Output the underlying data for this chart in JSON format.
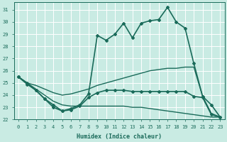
{
  "xlabel": "Humidex (Indice chaleur)",
  "xlim": [
    -0.5,
    23.5
  ],
  "ylim": [
    22,
    31.6
  ],
  "yticks": [
    22,
    23,
    24,
    25,
    26,
    27,
    28,
    29,
    30,
    31
  ],
  "xticks": [
    0,
    1,
    2,
    3,
    4,
    5,
    6,
    7,
    8,
    9,
    10,
    11,
    12,
    13,
    14,
    15,
    16,
    17,
    18,
    19,
    20,
    21,
    22,
    23
  ],
  "bg_color": "#c9ebe3",
  "grid_color": "#b0d8d0",
  "line_color": "#1a6b5a",
  "series": [
    {
      "x": [
        0,
        1,
        2,
        3,
        4,
        5,
        6,
        7,
        8,
        9,
        10,
        11,
        12,
        13,
        14,
        15,
        16,
        17,
        18,
        19,
        20,
        21,
        22,
        23
      ],
      "y": [
        25.5,
        25.0,
        24.5,
        24.0,
        23.5,
        23.2,
        23.1,
        23.1,
        23.1,
        23.1,
        23.1,
        23.1,
        23.1,
        23.0,
        23.0,
        22.9,
        22.8,
        22.7,
        22.6,
        22.5,
        22.4,
        22.3,
        22.2,
        22.2
      ],
      "marker": false,
      "lw": 1.0
    },
    {
      "x": [
        0,
        1,
        2,
        3,
        4,
        5,
        6,
        7,
        8,
        9,
        10,
        11,
        12,
        13,
        14,
        15,
        16,
        17,
        18,
        19,
        20,
        21,
        22,
        23
      ],
      "y": [
        25.5,
        25.0,
        24.8,
        24.5,
        24.2,
        24.0,
        24.1,
        24.3,
        24.5,
        24.8,
        25.0,
        25.2,
        25.4,
        25.6,
        25.8,
        26.0,
        26.1,
        26.2,
        26.2,
        26.3,
        26.3,
        23.9,
        22.5,
        22.2
      ],
      "marker": false,
      "lw": 1.0
    },
    {
      "x": [
        0,
        1,
        2,
        3,
        4,
        5,
        6,
        7,
        8,
        9,
        10,
        11,
        12,
        13,
        14,
        15,
        16,
        17,
        18,
        19,
        20,
        21,
        22,
        23
      ],
      "y": [
        25.5,
        24.9,
        24.4,
        23.7,
        23.0,
        22.7,
        22.8,
        23.1,
        23.8,
        24.2,
        24.4,
        24.4,
        24.4,
        24.3,
        24.3,
        24.3,
        24.3,
        24.3,
        24.3,
        24.3,
        23.9,
        23.8,
        22.4,
        22.2
      ],
      "marker": true,
      "lw": 1.2
    },
    {
      "x": [
        0,
        1,
        2,
        3,
        4,
        5,
        6,
        7,
        8,
        9,
        10,
        11,
        12,
        13,
        14,
        15,
        16,
        17,
        18,
        19,
        20,
        21,
        22,
        23
      ],
      "y": [
        25.5,
        25.0,
        24.4,
        23.7,
        23.2,
        22.7,
        22.9,
        23.2,
        24.1,
        28.9,
        28.5,
        29.0,
        29.9,
        28.7,
        29.9,
        30.1,
        30.2,
        31.2,
        30.0,
        29.5,
        26.6,
        23.9,
        23.2,
        22.2
      ],
      "marker": true,
      "lw": 1.2
    }
  ]
}
